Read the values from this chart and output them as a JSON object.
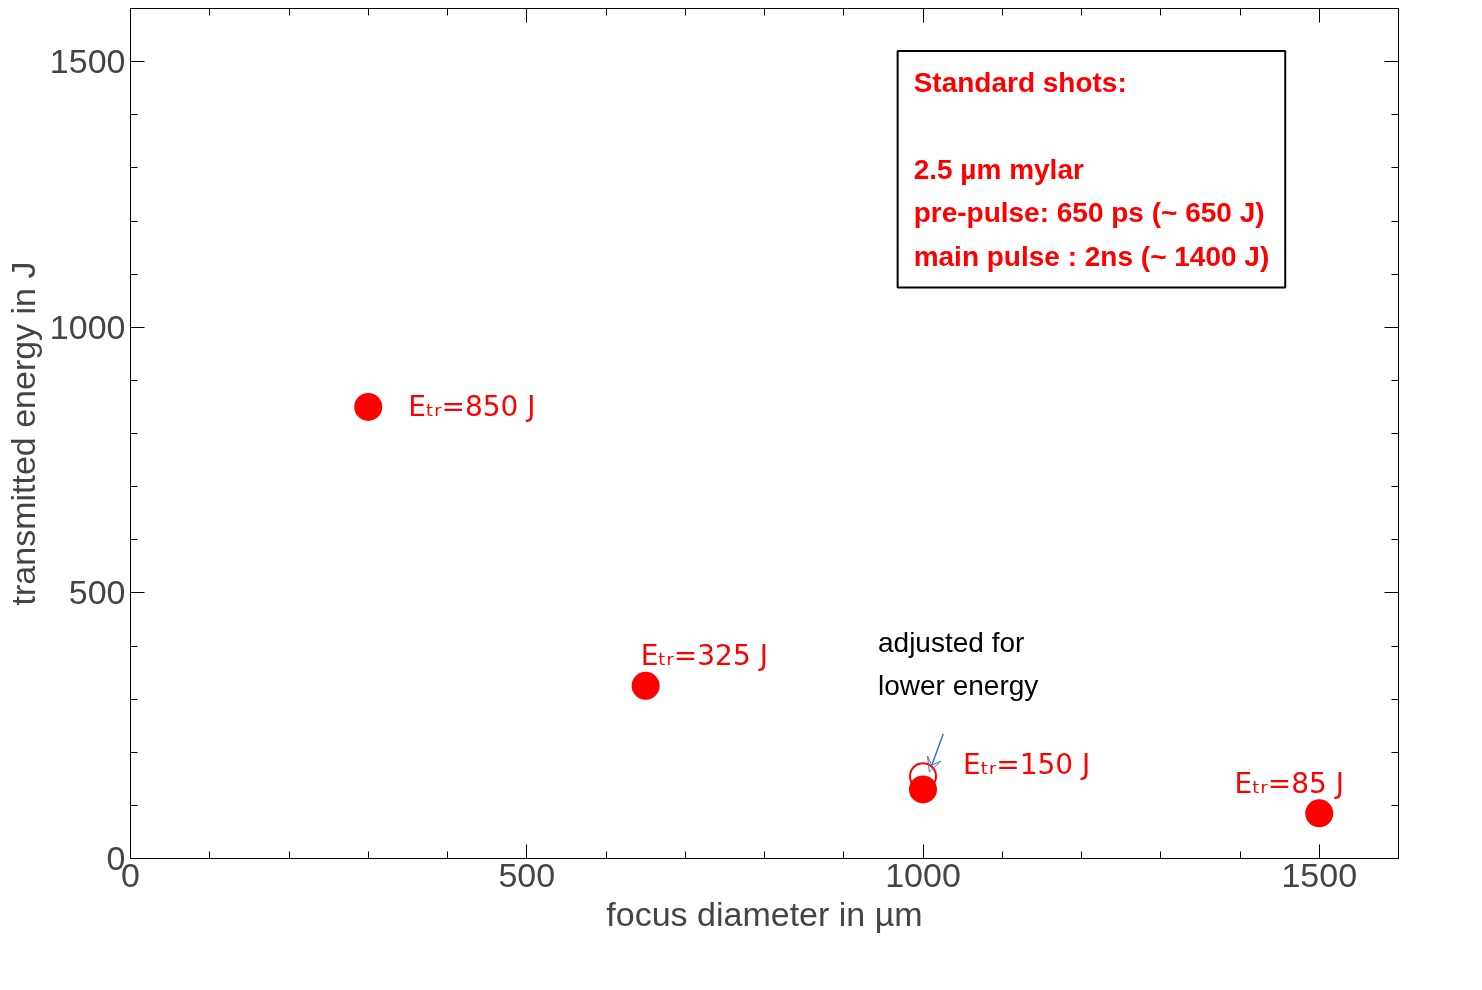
{
  "chart_data": {
    "type": "scatter",
    "xlabel": "focus diameter in µm",
    "ylabel": "transmitted energy in J",
    "xlim": [
      0,
      1600
    ],
    "ylim": [
      0,
      1600
    ],
    "xticks": [
      0,
      500,
      1000,
      1500
    ],
    "yticks": [
      0,
      500,
      1000,
      1500
    ],
    "grid": false,
    "marker": "circle",
    "series": [
      {
        "color": "#ff0000",
        "x": [
          300,
          650,
          1000,
          1500
        ],
        "values": [
          850,
          325,
          130,
          85
        ]
      },
      {
        "color": "#ff0000",
        "x": [
          1000
        ],
        "values": [
          155
        ],
        "marker": "circle_open"
      }
    ],
    "annotations": [
      {
        "text": "Eₜᵣ=850 J",
        "x": 300,
        "y": 850
      },
      {
        "text": "Eₜᵣ=325 J",
        "x": 650,
        "y": 325
      },
      {
        "text": "Eₜᵣ=150 J",
        "x": 1000,
        "y": 130
      },
      {
        "text": "Eₜᵣ=85 J",
        "x": 1500,
        "y": 85
      },
      {
        "text": "adjusted for\nlower energy",
        "x": 1000,
        "y": 155
      },
      "Standard shots:",
      "2.5 µm mylar\npre-pulse: 650 ps (~ 650 J)\nmain pulse : 2ns (~ 1400 J)"
    ]
  }
}
